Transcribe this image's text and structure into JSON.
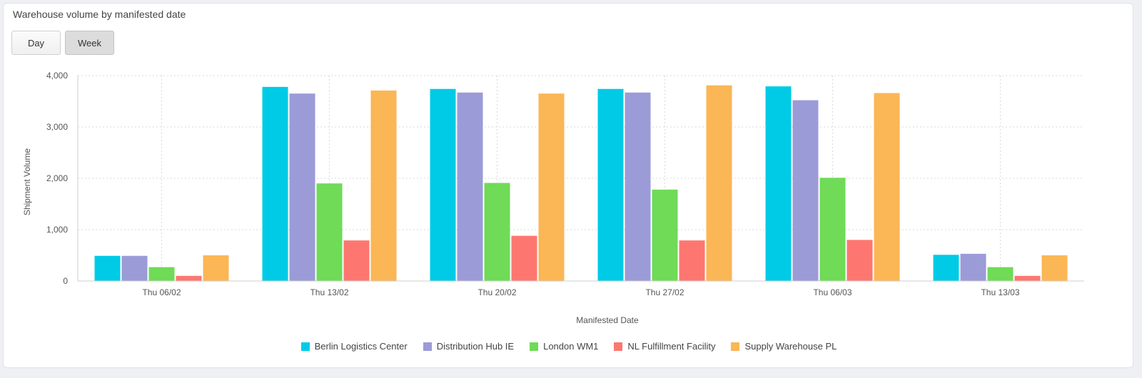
{
  "card": {
    "title": "Warehouse volume by manifested date"
  },
  "toggles": [
    {
      "label": "Day",
      "active": false
    },
    {
      "label": "Week",
      "active": true
    }
  ],
  "chart_data": {
    "type": "bar",
    "title": "",
    "xlabel": "Manifested Date",
    "ylabel": "Shipment Volume",
    "ylim": [
      0,
      4000
    ],
    "yticks": [
      0,
      1000,
      2000,
      3000,
      4000
    ],
    "ytick_labels": [
      "0",
      "1,000",
      "2,000",
      "3,000",
      "4,000"
    ],
    "grid": true,
    "legend_position": "bottom",
    "categories": [
      "Thu 06/02",
      "Thu 13/02",
      "Thu 20/02",
      "Thu 27/02",
      "Thu 06/03",
      "Thu 13/03"
    ],
    "series": [
      {
        "name": "Berlin Logistics Center",
        "color": "#00cbe6",
        "values": [
          490,
          3780,
          3740,
          3740,
          3790,
          510
        ]
      },
      {
        "name": "Distribution Hub IE",
        "color": "#9b9bd8",
        "values": [
          490,
          3650,
          3670,
          3670,
          3520,
          530
        ]
      },
      {
        "name": "London WM1",
        "color": "#6fdb57",
        "values": [
          270,
          1900,
          1910,
          1780,
          2010,
          270
        ]
      },
      {
        "name": "NL Fulfillment Facility",
        "color": "#fd7770",
        "values": [
          100,
          790,
          880,
          790,
          800,
          100
        ]
      },
      {
        "name": "Supply Warehouse PL",
        "color": "#fbb655",
        "values": [
          500,
          3710,
          3650,
          3810,
          3660,
          500
        ]
      }
    ]
  }
}
